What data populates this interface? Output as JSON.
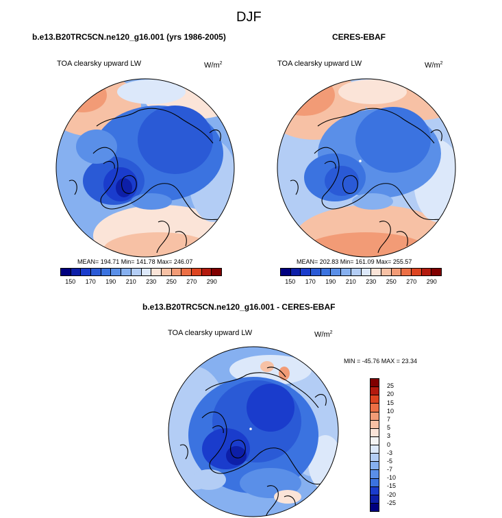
{
  "page": {
    "title": "DJF"
  },
  "panels": [
    {
      "title": "b.e13.B20TRC5CN.ne120_g16.001 (yrs 1986-2005)",
      "variable": "TOA clearsky upward LW",
      "units_base": "W/m",
      "units_sup": "2",
      "stats": "MEAN= 194.71  Min= 141.78  Max= 246.07"
    },
    {
      "title": "CERES-EBAF",
      "variable": "TOA clearsky upward LW",
      "units_base": "W/m",
      "units_sup": "2",
      "stats": "MEAN= 202.83  Min= 161.09  Max= 255.57"
    },
    {
      "title": "b.e13.B20TRC5CN.ne120_g16.001 - CERES-EBAF",
      "variable": "TOA clearsky upward LW",
      "units_base": "W/m",
      "units_sup": "2",
      "stats": "MIN = -45.76 MAX =  23.34"
    }
  ],
  "chart_data": [
    {
      "type": "heatmap",
      "title": "b.e13.B20TRC5CN.ne120_g16.001 (yrs 1986-2005)",
      "projection": "polar-stereographic-north",
      "colorbar": {
        "orientation": "horizontal",
        "levels": [
          150,
          160,
          170,
          180,
          190,
          200,
          210,
          220,
          230,
          240,
          250,
          260,
          270,
          280,
          290
        ],
        "tick_labels": [
          "150",
          "170",
          "190",
          "210",
          "230",
          "250",
          "270",
          "290"
        ],
        "colors": [
          "#00007f",
          "#0d1fa8",
          "#1a3ccc",
          "#2a5ad6",
          "#3b73e0",
          "#5a8fe8",
          "#86b0f0",
          "#b3cdf5",
          "#dce8fa",
          "#fbe4d8",
          "#f7c1a5",
          "#f29b76",
          "#ec6f45",
          "#dd4420",
          "#b31a0e",
          "#800000"
        ]
      },
      "mean": 194.71,
      "min": 141.78,
      "max": 246.07
    },
    {
      "type": "heatmap",
      "title": "CERES-EBAF",
      "projection": "polar-stereographic-north",
      "colorbar": {
        "orientation": "horizontal",
        "levels": [
          150,
          160,
          170,
          180,
          190,
          200,
          210,
          220,
          230,
          240,
          250,
          260,
          270,
          280,
          290
        ],
        "tick_labels": [
          "150",
          "170",
          "190",
          "210",
          "230",
          "250",
          "270",
          "290"
        ],
        "colors": [
          "#00007f",
          "#0d1fa8",
          "#1a3ccc",
          "#2a5ad6",
          "#3b73e0",
          "#5a8fe8",
          "#86b0f0",
          "#b3cdf5",
          "#dce8fa",
          "#fbe4d8",
          "#f7c1a5",
          "#f29b76",
          "#ec6f45",
          "#dd4420",
          "#b31a0e",
          "#800000"
        ]
      },
      "mean": 202.83,
      "min": 161.09,
      "max": 255.57
    },
    {
      "type": "heatmap",
      "title": "b.e13.B20TRC5CN.ne120_g16.001 - CERES-EBAF",
      "projection": "polar-stereographic-north",
      "colorbar": {
        "orientation": "vertical",
        "levels": [
          25,
          20,
          15,
          10,
          7,
          5,
          3,
          0,
          -3,
          -5,
          -7,
          -10,
          -15,
          -20,
          -25
        ],
        "tick_labels": [
          "25",
          "20",
          "15",
          "10",
          "7",
          "5",
          "3",
          "0",
          "-3",
          "-5",
          "-7",
          "-10",
          "-15",
          "-20",
          "-25"
        ],
        "colors": [
          "#800000",
          "#b31a0e",
          "#dd4420",
          "#ec6f45",
          "#f29b76",
          "#f7c1a5",
          "#fbe4d8",
          "#f4f4f4",
          "#dce8fa",
          "#b3cdf5",
          "#86b0f0",
          "#5a8fe8",
          "#3b73e0",
          "#1a3ccc",
          "#0d1fa8",
          "#00007f"
        ]
      },
      "min": -45.76,
      "max": 23.34
    }
  ]
}
